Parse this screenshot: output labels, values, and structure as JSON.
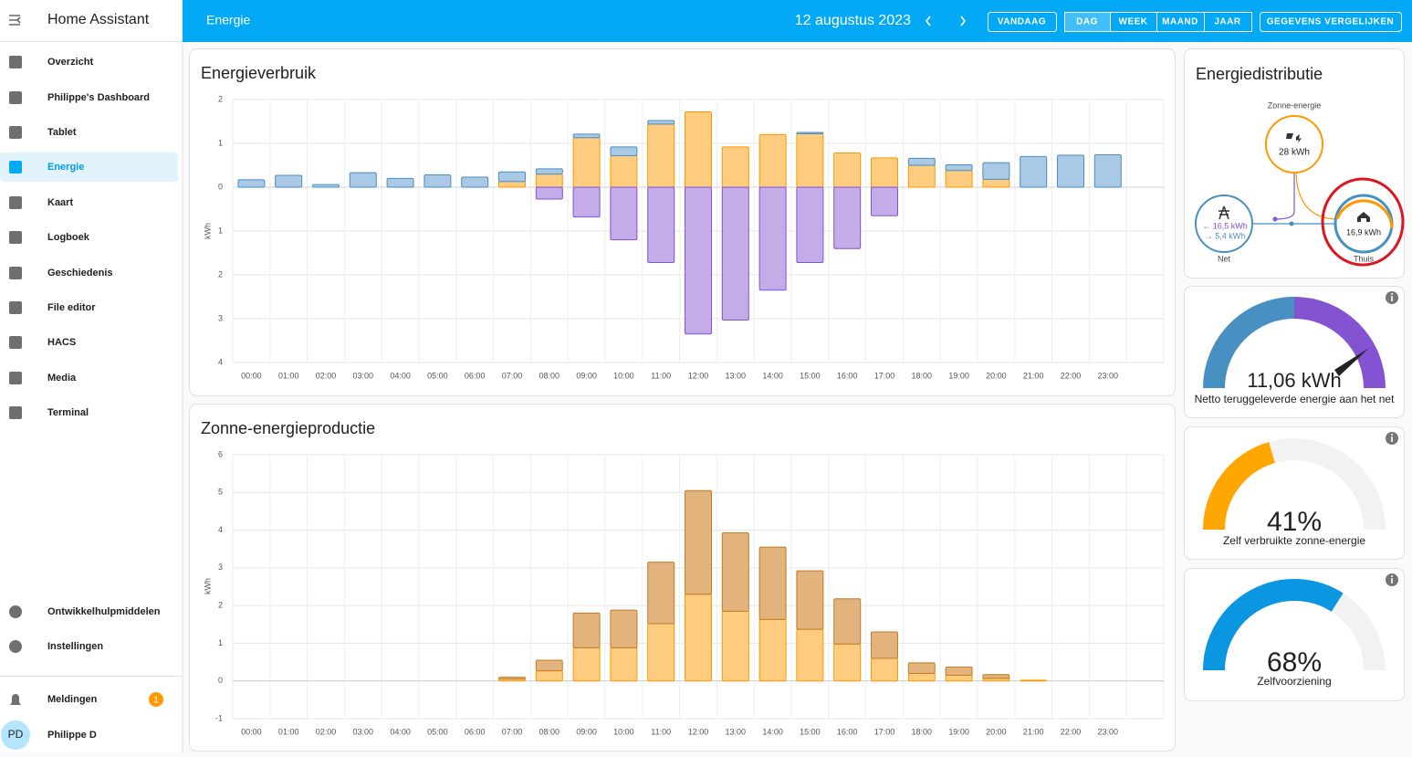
{
  "sidebar": {
    "title": "Home Assistant",
    "items": [
      "Overzicht",
      "Philippe's Dashboard",
      "Tablet",
      "Energie",
      "Kaart",
      "Logboek",
      "Geschiedenis",
      "File editor",
      "HACS",
      "Media",
      "Terminal"
    ],
    "bottom_items": [
      "Ontwikkelhulpmiddelen",
      "Instellingen"
    ],
    "notifications": {
      "label": "Meldingen",
      "badge": 1
    },
    "user": {
      "initials": "PD",
      "name": "Philippe D"
    }
  },
  "header": {
    "title": "Energie",
    "date": "12 augustus 2023",
    "buttons": [
      "VANDAAG",
      "DAG",
      "WEEK",
      "MAAND",
      "JAAR",
      "GEGEVENS VERGELIJKEN"
    ]
  },
  "charts": [
    {
      "type": "bar",
      "title": "Energieverbruik",
      "y_label": "kWh",
      "categories": [
        "00:00",
        "01:00",
        "02:00",
        "03:00",
        "04:00",
        "05:00",
        "06:00",
        "07:00",
        "08:00",
        "09:00",
        "10:00",
        "11:00",
        "12:00",
        "13:00",
        "14:00",
        "15:00",
        "16:00",
        "17:00",
        "18:00",
        "19:00",
        "20:00",
        "21:00",
        "22:00",
        "23:00"
      ],
      "ylim": [
        -4,
        2
      ],
      "yticks": [
        2,
        1,
        0,
        {
          "value": -1,
          "label": "1"
        },
        {
          "value": -2,
          "label": "2"
        },
        {
          "value": -3,
          "label": "3"
        },
        {
          "value": -4,
          "label": "4"
        }
      ],
      "grid": true,
      "series": [
        {
          "color": "#ffcc80",
          "border_color": "#ff9800",
          "values": [
            0,
            0,
            0,
            0,
            0,
            0,
            0,
            0.13,
            0.3,
            1.13,
            0.72,
            1.44,
            1.72,
            0.92,
            1.2,
            1.22,
            0.78,
            0.67,
            0.5,
            0.38,
            0.18,
            0,
            0,
            0
          ]
        },
        {
          "color": "#a9c9e6",
          "border_color": "#488fc2",
          "values": [
            0.17,
            0.27,
            0.06,
            0.33,
            0.2,
            0.28,
            0.23,
            0.22,
            0.12,
            0.08,
            0.2,
            0.08,
            0,
            0,
            0,
            0.03,
            0,
            0,
            0.16,
            0.13,
            0.38,
            0.7,
            0.73,
            0.74
          ]
        },
        {
          "color": "#c4ace9",
          "border_color": "#8353d1",
          "values": [
            0,
            0,
            0,
            0,
            0,
            0,
            0,
            0,
            -0.27,
            -0.68,
            -1.2,
            -1.72,
            -3.35,
            -3.03,
            -2.35,
            -1.72,
            -1.4,
            -0.65,
            0,
            0,
            0,
            0,
            0,
            0
          ]
        }
      ]
    },
    {
      "type": "bar",
      "title": "Zonne-energieproductie",
      "y_label": "kWh",
      "categories": [
        "00:00",
        "01:00",
        "02:00",
        "03:00",
        "04:00",
        "05:00",
        "06:00",
        "07:00",
        "08:00",
        "09:00",
        "10:00",
        "11:00",
        "12:00",
        "13:00",
        "14:00",
        "15:00",
        "16:00",
        "17:00",
        "18:00",
        "19:00",
        "20:00",
        "21:00",
        "22:00",
        "23:00"
      ],
      "ylim": [
        -1,
        6
      ],
      "yticks": [
        6,
        5,
        4,
        3,
        2,
        1,
        0,
        -1
      ],
      "grid": true,
      "series": [
        {
          "color": "#ffcc80",
          "border_color": "#ff9800",
          "values": [
            0,
            0,
            0,
            0,
            0,
            0,
            0,
            0.05,
            0.27,
            0.88,
            0.88,
            1.52,
            2.3,
            1.85,
            1.63,
            1.37,
            0.98,
            0.6,
            0.2,
            0.15,
            0.07,
            0.02,
            0,
            0
          ]
        },
        {
          "color": "#e3b37e",
          "border_color": "#c47b22",
          "values": [
            0,
            0,
            0,
            0,
            0,
            0,
            0,
            0.05,
            0.28,
            0.92,
            1.0,
            1.63,
            2.75,
            2.08,
            1.92,
            1.55,
            1.2,
            0.7,
            0.28,
            0.22,
            0.1,
            0,
            0,
            0
          ]
        }
      ]
    }
  ],
  "distribution": {
    "title": "Energiedistributie",
    "solar": {
      "label": "Zonne-energie",
      "value": "28 kWh"
    },
    "grid": {
      "label": "Net",
      "import": "← 16,5 kWh",
      "export": "→ 5,4 kWh"
    },
    "home": {
      "label": "Thuis",
      "value": "16,9 kWh"
    }
  },
  "gauges": [
    {
      "value": 11.06,
      "value_label": "11,06 kWh",
      "caption": "Netto teruggeleverde energie aan het net"
    },
    {
      "value": 41,
      "value_label": "41%",
      "caption": "Zelf verbruikte zonne-energie",
      "color": "#ffa600"
    },
    {
      "value": 68,
      "value_label": "68%",
      "caption": "Zelfvoorziening",
      "color": "#0a96e0"
    }
  ]
}
